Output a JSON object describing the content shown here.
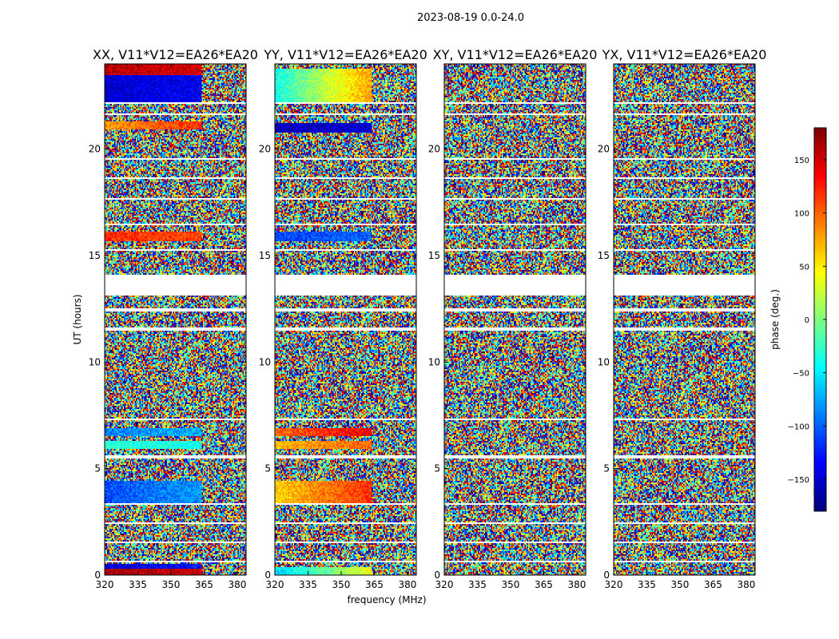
{
  "figure": {
    "suptitle": "2023-08-19 0.0-24.0",
    "xlabel": "frequency (MHz)",
    "ylabel": "UT (hours)",
    "colorbar_label": "phase (deg.)"
  },
  "chart_data": {
    "type": "heatmap",
    "colormap": "jet",
    "colorbar": {
      "label": "phase (deg.)",
      "range": [
        -180,
        180
      ],
      "ticks": [
        -150,
        -100,
        -50,
        0,
        50,
        100,
        150
      ]
    },
    "xlim": [
      320,
      384
    ],
    "ylim": [
      0,
      24
    ],
    "x_ticks": [
      320,
      335,
      350,
      365,
      380
    ],
    "y_ticks": [
      0,
      5,
      10,
      15,
      20
    ],
    "panels": [
      {
        "title": "XX, V11*V12=EA26*EA20",
        "polarization": "XX",
        "coherent_bands": [
          {
            "t": [
              0.0,
              0.3
            ],
            "phase_low": 170,
            "phase_high": 150,
            "split": 364
          },
          {
            "t": [
              0.3,
              0.55
            ],
            "phase_low": -150,
            "phase_high": -130,
            "split": 364
          },
          {
            "t": [
              3.4,
              4.4
            ],
            "phase_low": -110,
            "phase_high": -80,
            "split": 364
          },
          {
            "t": [
              5.9,
              6.3
            ],
            "phase_low": -30,
            "phase_high": -40,
            "split": 364
          },
          {
            "t": [
              6.5,
              6.9
            ],
            "phase_low": -90,
            "phase_high": -70,
            "split": 364
          },
          {
            "t": [
              15.7,
              16.1
            ],
            "phase_low": 120,
            "phase_high": 110,
            "split": 364
          },
          {
            "t": [
              20.9,
              21.3
            ],
            "phase_low": 80,
            "phase_high": 120,
            "split": 364
          },
          {
            "t": [
              22.2,
              23.5
            ],
            "phase_low": -150,
            "phase_high": -140,
            "split": 364
          },
          {
            "t": [
              23.5,
              24.0
            ],
            "phase_low": 160,
            "phase_high": 150,
            "split": 364
          }
        ]
      },
      {
        "title": "YY, V11*V12=EA26*EA20",
        "polarization": "YY",
        "coherent_bands": [
          {
            "t": [
              0.0,
              0.4
            ],
            "phase_low": -60,
            "phase_high": 40,
            "split": 364
          },
          {
            "t": [
              3.4,
              4.4
            ],
            "phase_low": 60,
            "phase_high": 120,
            "split": 364
          },
          {
            "t": [
              5.9,
              6.3
            ],
            "phase_low": 70,
            "phase_high": 100,
            "split": 364
          },
          {
            "t": [
              6.5,
              6.9
            ],
            "phase_low": 100,
            "phase_high": 140,
            "split": 364
          },
          {
            "t": [
              15.7,
              16.1
            ],
            "phase_low": -110,
            "phase_high": -100,
            "split": 364
          },
          {
            "t": [
              20.8,
              21.2
            ],
            "phase_low": -160,
            "phase_high": -150,
            "split": 364
          },
          {
            "t": [
              22.2,
              23.8
            ],
            "phase_low": -40,
            "phase_high": 80,
            "split": 364
          }
        ]
      },
      {
        "title": "XY, V11*V12=EA26*EA20",
        "polarization": "XY",
        "coherent_bands": []
      },
      {
        "title": "YX, V11*V12=EA26*EA20",
        "polarization": "YX",
        "coherent_bands": []
      }
    ],
    "flagged_ut_ranges": [
      [
        0.6,
        0.7
      ],
      [
        1.5,
        1.6
      ],
      [
        2.4,
        2.5
      ],
      [
        3.3,
        3.35
      ],
      [
        5.5,
        5.6
      ],
      [
        7.3,
        7.35
      ],
      [
        9.2,
        9.25
      ],
      [
        11.5,
        11.6
      ],
      [
        12.4,
        12.5
      ],
      [
        13.1,
        14.1
      ],
      [
        15.2,
        15.3
      ],
      [
        16.4,
        16.5
      ],
      [
        17.6,
        17.7
      ],
      [
        18.6,
        18.7
      ],
      [
        19.5,
        19.55
      ],
      [
        21.6,
        21.7
      ],
      [
        22.1,
        22.2
      ]
    ]
  }
}
